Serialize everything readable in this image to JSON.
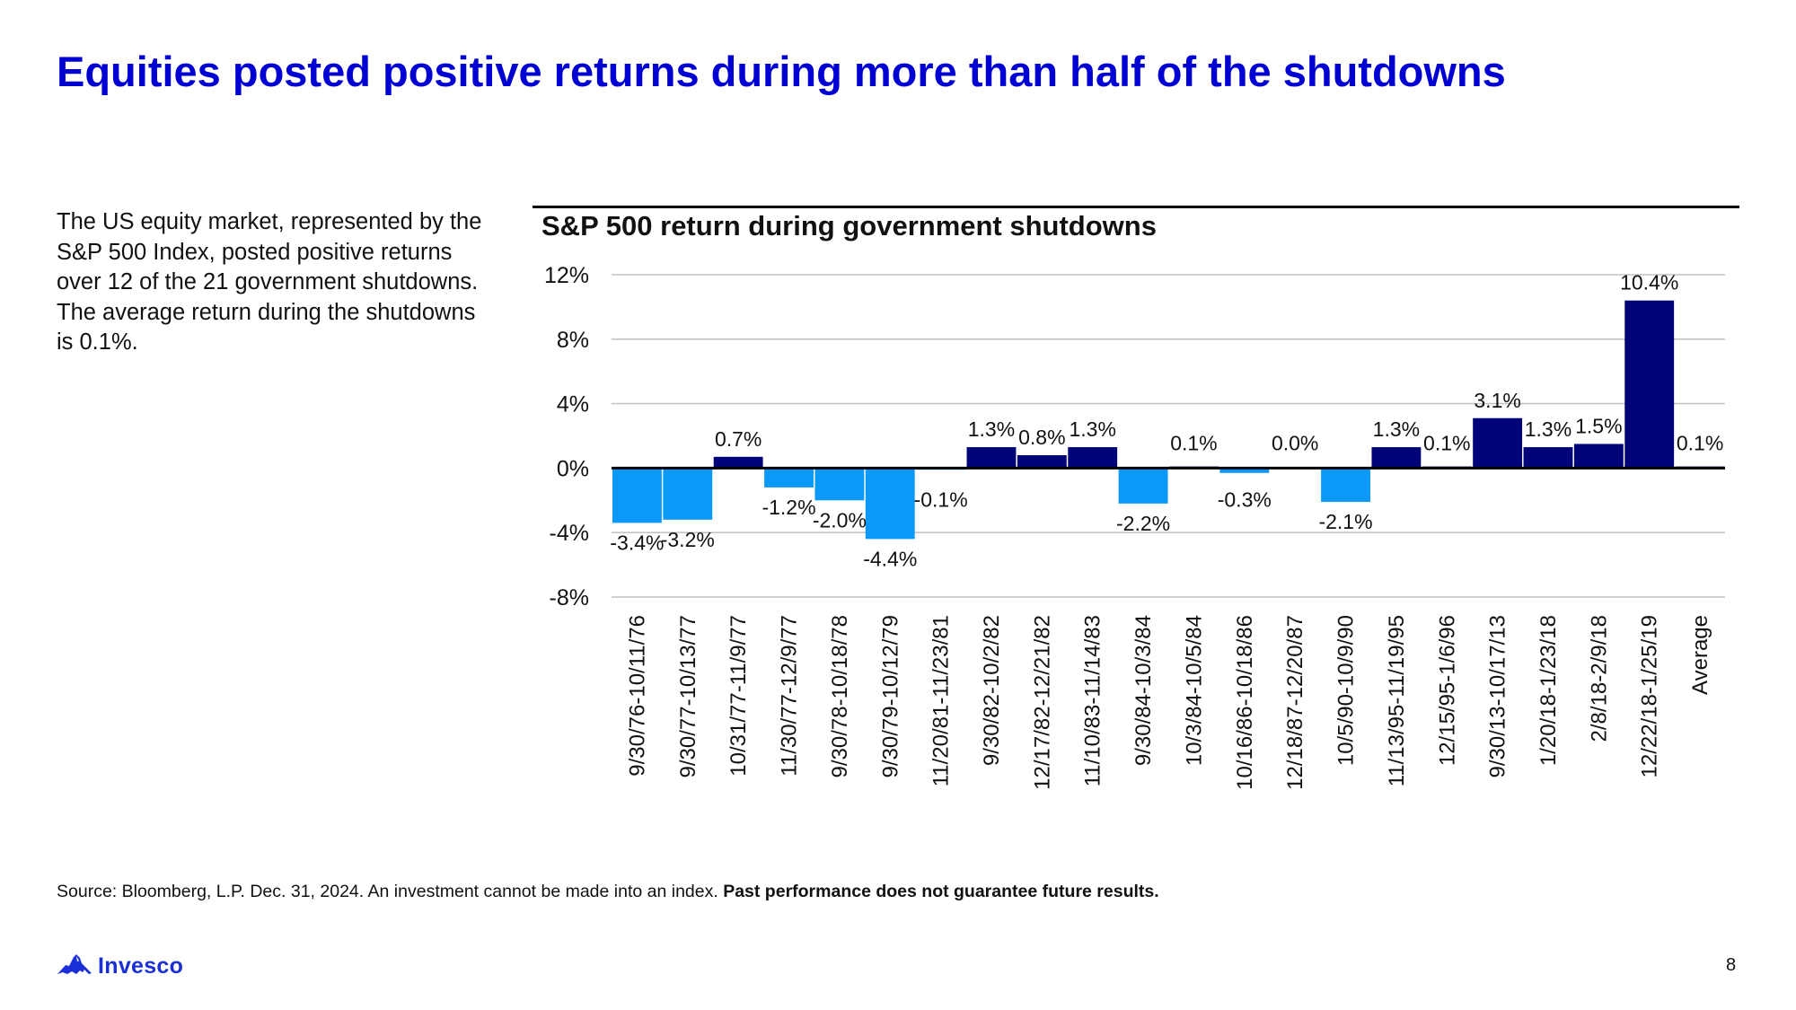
{
  "slide": {
    "title": "Equities posted positive returns during more than half of the shutdowns",
    "body_text": "The US equity market, represented by the S&P 500 Index, posted positive returns over 12 of the 21 government shutdowns. The average return during the shutdowns is 0.1%.",
    "source_text": "Source: Bloomberg, L.P. Dec. 31, 2024. An investment cannot be made into an index. ",
    "source_disclaimer": "Past performance does not guarantee future results.",
    "logo_text": "Invesco",
    "logo_icon": "mountain-logo-icon",
    "page_number": "8"
  },
  "colors": {
    "title": "#0000d2",
    "positive_bar": "#000478",
    "negative_bar": "#0a99f9",
    "gridline": "#c4c4c4",
    "zero_axis": "#000000",
    "logo": "#1a2fd6"
  },
  "chart_data": {
    "type": "bar",
    "title": "S&P 500 return during government shutdowns",
    "xlabel": "",
    "ylabel": "",
    "ylim": [
      -8,
      12
    ],
    "yticks": [
      12,
      8,
      4,
      0,
      -4,
      -8
    ],
    "ytick_labels": [
      "12%",
      "8%",
      "4%",
      "0%",
      "-4%",
      "-8%"
    ],
    "grid": true,
    "legend": "none",
    "categories": [
      "9/30/76-10/11/76",
      "9/30/77-10/13/77",
      "10/31/77-11/9/77",
      "11/30/77-12/9/77",
      "9/30/78-10/18/78",
      "9/30/79-10/12/79",
      "11/20/81-11/23/81",
      "9/30/82-10/2/82",
      "12/17/82-12/21/82",
      "11/10/83-11/14/83",
      "9/30/84-10/3/84",
      "10/3/84-10/5/84",
      "10/16/86-10/18/86",
      "12/18/87-12/20/87",
      "10/5/90-10/9/90",
      "11/13/95-11/19/95",
      "12/15/95-1/6/96",
      "9/30/13-10/17/13",
      "1/20/18-1/23/18",
      "2/8/18-2/9/18",
      "12/22/18-1/25/19",
      "Average"
    ],
    "values": [
      -3.4,
      -3.2,
      0.7,
      -1.2,
      -2.0,
      -4.4,
      -0.1,
      1.3,
      0.8,
      1.3,
      -2.2,
      0.1,
      -0.3,
      0.0,
      -2.1,
      1.3,
      0.1,
      3.1,
      1.3,
      1.5,
      10.4,
      0.1
    ],
    "data_labels": [
      "-3.4%",
      "-3.2%",
      "0.7%",
      "-1.2%",
      "-2.0%",
      "-4.4%",
      "-0.1%",
      "1.3%",
      "0.8%",
      "1.3%",
      "-2.2%",
      "0.1%",
      "-0.3%",
      "0.0%",
      "-2.1%",
      "1.3%",
      "0.1%",
      "3.1%",
      "1.3%",
      "1.5%",
      "10.4%",
      "0.1%"
    ]
  }
}
